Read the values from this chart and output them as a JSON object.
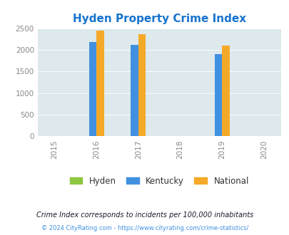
{
  "title": "Hyden Property Crime Index",
  "title_color": "#1874CD",
  "years": [
    2015,
    2016,
    2017,
    2018,
    2019,
    2020
  ],
  "bar_years": [
    2016,
    2017,
    2019
  ],
  "hyden": [
    0,
    0,
    0
  ],
  "kentucky": [
    2175,
    2115,
    1900
  ],
  "national": [
    2450,
    2360,
    2100
  ],
  "bar_width": 0.18,
  "kentucky_color": "#4191E0",
  "national_color": "#F5A928",
  "hyden_color": "#8DC63F",
  "bg_color": "#DDE9EC",
  "ylim": [
    0,
    2500
  ],
  "yticks": [
    0,
    500,
    1000,
    1500,
    2000,
    2500
  ],
  "legend_labels": [
    "Hyden",
    "Kentucky",
    "National"
  ],
  "footnote1": "Crime Index corresponds to incidents per 100,000 inhabitants",
  "footnote2": "© 2024 CityRating.com - https://www.cityrating.com/crime-statistics/",
  "footnote1_color": "#1a1a2e",
  "footnote2_color": "#4191E0"
}
